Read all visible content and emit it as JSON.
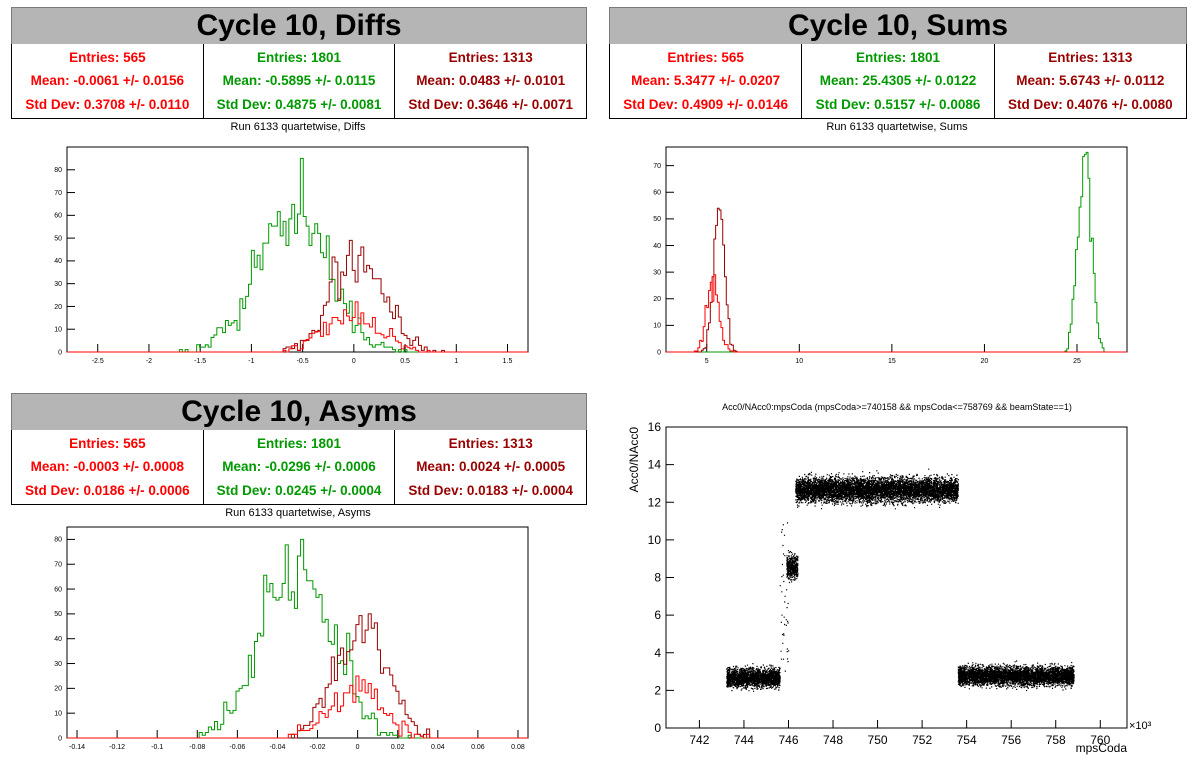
{
  "panels": {
    "diffs": {
      "banner": "Cycle 10, Diffs",
      "stats": [
        {
          "color": "#ff0000",
          "entries": "Entries: 565",
          "mean": "Mean: -0.0061 +/- 0.0156",
          "std": "Std Dev: 0.3708 +/- 0.0110"
        },
        {
          "color": "#009900",
          "entries": "Entries: 1801",
          "mean": "Mean: -0.5895 +/- 0.0115",
          "std": "Std Dev: 0.4875 +/- 0.0081"
        },
        {
          "color": "#990000",
          "entries": "Entries: 1313",
          "mean": "Mean: 0.0483 +/- 0.0101",
          "std": "Std Dev: 0.3646 +/- 0.0071"
        }
      ],
      "title": "Run 6133 quartetwise, Diffs"
    },
    "sums": {
      "banner": "Cycle 10, Sums",
      "stats": [
        {
          "color": "#ff0000",
          "entries": "Entries: 565",
          "mean": "Mean: 5.3477 +/- 0.0207",
          "std": "Std Dev: 0.4909 +/- 0.0146"
        },
        {
          "color": "#009900",
          "entries": "Entries: 1801",
          "mean": "Mean: 25.4305 +/- 0.0122",
          "std": "Std Dev: 0.5157 +/- 0.0086"
        },
        {
          "color": "#990000",
          "entries": "Entries: 1313",
          "mean": "Mean: 5.6743 +/- 0.0112",
          "std": "Std Dev: 0.4076 +/- 0.0080"
        }
      ],
      "title": "Run 6133 quartetwise, Sums"
    },
    "asyms": {
      "banner": "Cycle 10, Asyms",
      "stats": [
        {
          "color": "#ff0000",
          "entries": "Entries: 565",
          "mean": "Mean: -0.0003 +/- 0.0008",
          "std": "Std Dev: 0.0186 +/- 0.0006"
        },
        {
          "color": "#009900",
          "entries": "Entries: 1801",
          "mean": "Mean: -0.0296 +/- 0.0006",
          "std": "Std Dev: 0.0245 +/- 0.0004"
        },
        {
          "color": "#990000",
          "entries": "Entries: 1313",
          "mean": "Mean: 0.0024 +/- 0.0005",
          "std": "Std Dev: 0.0183 +/- 0.0004"
        }
      ],
      "title": "Run 6133 quartetwise, Asyms"
    },
    "scatter": {
      "title": "Acc0/NAcc0:mpsCoda (mpsCoda>=740158 && mpsCoda<=758769 && beamState==1)"
    }
  },
  "chart_data": [
    {
      "type": "bar",
      "subtype": "histogram-step",
      "title": "Run 6133 quartetwise, Diffs",
      "xlim": [
        -2.8,
        1.7
      ],
      "ylim": [
        0,
        90
      ],
      "xticks": [
        -2.5,
        -2,
        -1.5,
        -1,
        -0.5,
        0,
        0.5,
        1,
        1.5
      ],
      "yticks": [
        0,
        10,
        20,
        30,
        40,
        50,
        60,
        70,
        80
      ],
      "series": [
        {
          "color": "#009900",
          "mean": -0.5895,
          "std": 0.4875,
          "entries": 1801,
          "peak": 85
        },
        {
          "color": "#990000",
          "mean": 0.0483,
          "std": 0.3646,
          "entries": 1313,
          "peak": 49
        },
        {
          "color": "#ff0000",
          "mean": -0.0061,
          "std": 0.3708,
          "entries": 565,
          "peak": 22
        }
      ]
    },
    {
      "type": "bar",
      "subtype": "histogram-step",
      "title": "Run 6133 quartetwise, Sums",
      "xlim": [
        2.8,
        27.7
      ],
      "ylim": [
        0,
        77
      ],
      "xticks": [
        5,
        10,
        15,
        20,
        25
      ],
      "yticks": [
        0,
        10,
        20,
        30,
        40,
        50,
        60,
        70
      ],
      "series": [
        {
          "color": "#009900",
          "mean": 25.4305,
          "std": 0.5157,
          "entries": 1801,
          "peak": 75
        },
        {
          "color": "#990000",
          "mean": 5.6743,
          "std": 0.4076,
          "entries": 1313,
          "peak": 54
        },
        {
          "color": "#ff0000",
          "mean": 5.3477,
          "std": 0.4909,
          "entries": 565,
          "peak": 29
        }
      ]
    },
    {
      "type": "bar",
      "subtype": "histogram-step",
      "title": "Run 6133 quartetwise, Asyms",
      "xlim": [
        -0.145,
        0.085
      ],
      "ylim": [
        0,
        85
      ],
      "xticks": [
        -0.14,
        -0.12,
        -0.1,
        -0.08,
        -0.06,
        -0.04,
        -0.02,
        0,
        0.02,
        0.04,
        0.06,
        0.08
      ],
      "yticks": [
        0,
        10,
        20,
        30,
        40,
        50,
        60,
        70,
        80
      ],
      "series": [
        {
          "color": "#009900",
          "mean": -0.0296,
          "std": 0.0245,
          "entries": 1801,
          "peak": 80
        },
        {
          "color": "#990000",
          "mean": 0.0024,
          "std": 0.0183,
          "entries": 1313,
          "peak": 50
        },
        {
          "color": "#ff0000",
          "mean": -0.0003,
          "std": 0.0186,
          "entries": 565,
          "peak": 25
        }
      ]
    },
    {
      "type": "scatter",
      "title": "Acc0/NAcc0:mpsCoda (mpsCoda>=740158 && mpsCoda<=758769 && beamState==1)",
      "xlabel": "mpsCoda",
      "ylabel": "Acc0/NAcc0",
      "x_multiplier": "×10³",
      "xlim": [
        740.5,
        761.2
      ],
      "ylim": [
        0,
        16
      ],
      "xticks": [
        742,
        744,
        746,
        748,
        750,
        752,
        754,
        756,
        758,
        760
      ],
      "yticks": [
        0,
        2,
        4,
        6,
        8,
        10,
        12,
        14,
        16
      ],
      "clusters": [
        {
          "x_range": [
            743.2,
            745.6
          ],
          "y_mean": 2.7,
          "y_spread": 0.35
        },
        {
          "x_range": [
            745.9,
            746.4
          ],
          "y_mean": 8.6,
          "y_spread": 0.45
        },
        {
          "x_range": [
            746.3,
            753.6
          ],
          "y_mean": 12.7,
          "y_spread": 0.45
        },
        {
          "x_range": [
            753.6,
            758.8
          ],
          "y_mean": 2.8,
          "y_spread": 0.35
        }
      ]
    }
  ]
}
